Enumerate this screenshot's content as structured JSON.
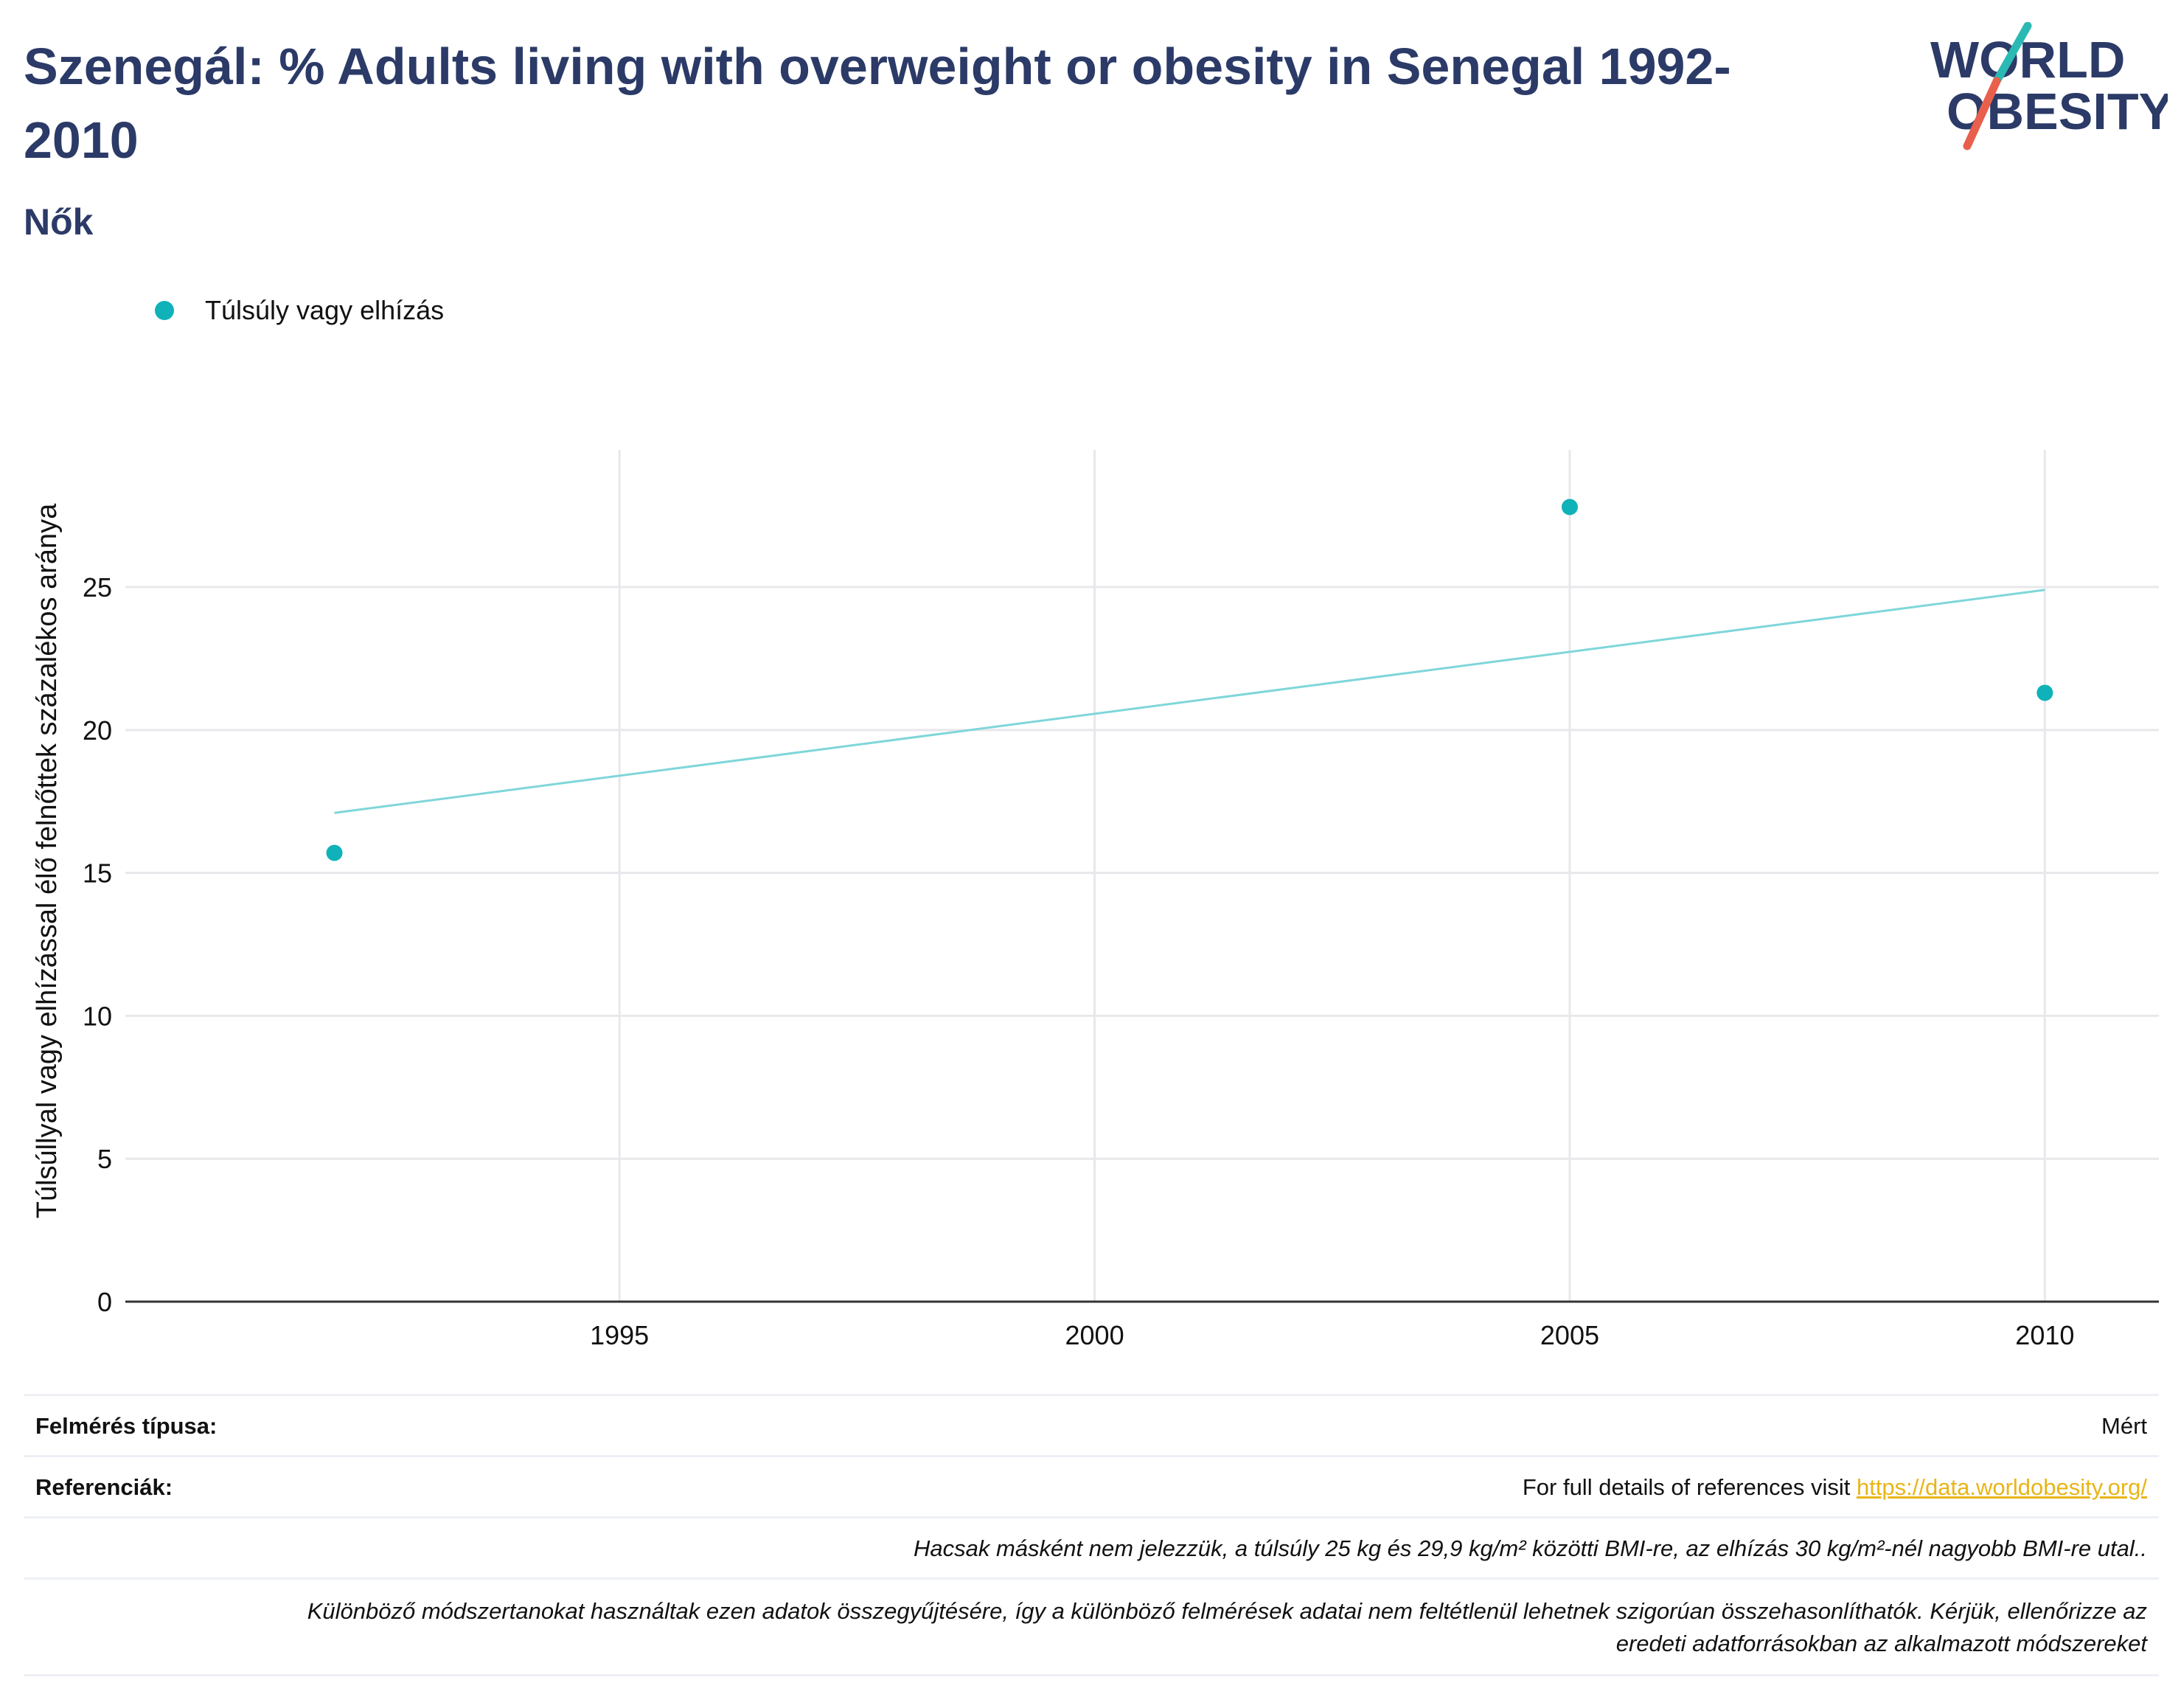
{
  "header": {
    "title": "Szenegál: % Adults living with overweight or obesity in Senegal 1992-2010",
    "subtitle": "Nők",
    "logo_text_line1": "WORLD",
    "logo_text_line2": "OBESITY"
  },
  "colors": {
    "title": "#2b3a67",
    "series": "#0eb2b8",
    "trend": "#7fd6d9",
    "link": "#e8b517",
    "logo_teal": "#2bb9b3",
    "logo_red": "#e8604c"
  },
  "legend": {
    "label": "Túlsúly vagy elhízás"
  },
  "chart_data": {
    "type": "scatter",
    "ylabel": "Túlsúllyal vagy elhízással élő felnőttek százalékos aránya",
    "xlabel": "",
    "xlim": [
      1989.8,
      2011.2
    ],
    "ylim": [
      0,
      29.8
    ],
    "xticks": [
      1995,
      2000,
      2005,
      2010
    ],
    "yticks": [
      0,
      5,
      10,
      15,
      20,
      25
    ],
    "grid": true,
    "legend_position": "top-left",
    "series": [
      {
        "name": "Túlsúly vagy elhízás",
        "x": [
          1992,
          2005,
          2010
        ],
        "y": [
          15.7,
          27.8,
          21.3
        ]
      }
    ],
    "trendline": {
      "x": [
        1992,
        2010
      ],
      "y": [
        17.1,
        24.9
      ]
    }
  },
  "footer": {
    "survey_type_label": "Felmérés típusa:",
    "survey_type_value": "Mért",
    "references_label": "Referenciák:",
    "references_text": "For full details of references visit ",
    "references_link": "https://data.worldobesity.org/",
    "note1": "Hacsak másként nem jelezzük, a túlsúly 25 kg és 29,9 kg/m² közötti BMI-re, az elhízás 30 kg/m²-nél nagyobb BMI-re utal..",
    "note2_line1": "Különböző módszertanokat használtak ezen adatok összegyűjtésére, így a különböző felmérések adatai nem feltétlenül lehetnek szigorúan összehasonlíthatók. Kérjük, ellenőrizze az",
    "note2_line2": "eredeti adatforrásokban az alkalmazott módszereket"
  }
}
